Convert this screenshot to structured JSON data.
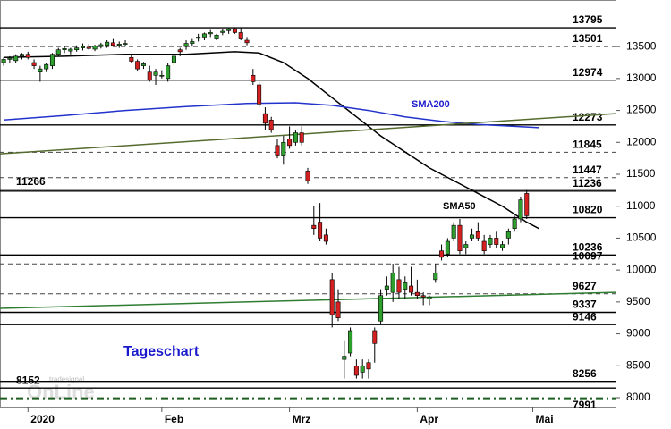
{
  "chart_data": {
    "type": "candlestick",
    "annotations": {
      "title": "Tageschart",
      "sma200": "SMA200",
      "sma50": "SMA50"
    },
    "watermark": [
      "tradesignal",
      "OnLine"
    ],
    "xlim": [
      -0.6,
      100.6
    ],
    "ylim": [
      7860,
      14230
    ],
    "yticks": [
      8000,
      8500,
      9000,
      9500,
      10000,
      10500,
      11000,
      11500,
      12000,
      12500,
      13000,
      13500
    ],
    "xticks": [
      {
        "value": 4,
        "label": "2020"
      },
      {
        "value": 26,
        "label": "Feb"
      },
      {
        "value": 47,
        "label": "Mrz"
      },
      {
        "value": 68,
        "label": "Apr"
      },
      {
        "value": 87,
        "label": "Mai"
      }
    ],
    "up_color": "#2e9e2e",
    "down_color": "#d42020",
    "candles": {
      "x": [
        0,
        1,
        2,
        3,
        4,
        5,
        6,
        7,
        8,
        9,
        10,
        11,
        12,
        13,
        14,
        15,
        16,
        17,
        18,
        19,
        20,
        21,
        22,
        23,
        24,
        25,
        26,
        27,
        28,
        29,
        30,
        31,
        32,
        33,
        34,
        35,
        36,
        37,
        38,
        39,
        40,
        41,
        42,
        43,
        44,
        45,
        46,
        47,
        48,
        49,
        50,
        51,
        52,
        53,
        54,
        55,
        56,
        57,
        58,
        59,
        60,
        61,
        62,
        63,
        64,
        65,
        66,
        67,
        68,
        69,
        70,
        71,
        72,
        73,
        74,
        75,
        76,
        77,
        78,
        79,
        80,
        81,
        82,
        83,
        84,
        85,
        86
      ],
      "open": [
        13250,
        13300,
        13280,
        13350,
        13380,
        13250,
        13100,
        13150,
        13200,
        13380,
        13450,
        13430,
        13450,
        13480,
        13490,
        13460,
        13500,
        13520,
        13560,
        13520,
        13540,
        13330,
        13270,
        13200,
        13100,
        13050,
        13050,
        13000,
        13250,
        13450,
        13500,
        13550,
        13630,
        13650,
        13700,
        13620,
        13720,
        13750,
        13780,
        13720,
        13600,
        13050,
        12900,
        12450,
        12350,
        11950,
        11800,
        12050,
        12000,
        12150,
        11550,
        10700,
        10750,
        10550,
        9850,
        9500,
        8600,
        8700,
        8500,
        8400,
        8550,
        9050,
        9200,
        9700,
        9650,
        9850,
        9700,
        9750,
        9650,
        9600,
        9550,
        9850,
        10300,
        10250,
        10500,
        10700,
        10350,
        10500,
        10600,
        10450,
        10400,
        10500,
        10350,
        10500,
        10650,
        10800,
        11200
      ],
      "high": [
        13330,
        13350,
        13380,
        13400,
        13420,
        13300,
        13200,
        13250,
        13400,
        13480,
        13500,
        13480,
        13520,
        13550,
        13540,
        13530,
        13560,
        13600,
        13620,
        13580,
        13600,
        13380,
        13300,
        13260,
        13200,
        13150,
        13130,
        13250,
        13380,
        13480,
        13600,
        13620,
        13700,
        13720,
        13760,
        13700,
        13780,
        13800,
        13800,
        13790,
        13650,
        13150,
        12950,
        12550,
        12400,
        12050,
        12100,
        12250,
        12200,
        12250,
        11600,
        11000,
        11050,
        10650,
        9950,
        9700,
        8900,
        9100,
        8600,
        8600,
        8600,
        9100,
        9700,
        9900,
        10100,
        10050,
        9900,
        10050,
        9850,
        9650,
        9600,
        10100,
        10400,
        10500,
        10750,
        10800,
        10450,
        10650,
        10750,
        10550,
        10550,
        10600,
        10450,
        10650,
        10850,
        11150,
        11250
      ],
      "low": [
        13200,
        13250,
        13250,
        13300,
        13300,
        13150,
        12950,
        13100,
        13150,
        13350,
        13400,
        13380,
        13420,
        13440,
        13450,
        13430,
        13470,
        13480,
        13500,
        13480,
        13500,
        13250,
        13120,
        13150,
        12950,
        12900,
        13000,
        12950,
        13200,
        13350,
        13450,
        13500,
        13580,
        13600,
        13650,
        13600,
        13680,
        13700,
        13700,
        13600,
        13520,
        12900,
        12550,
        12200,
        12150,
        11750,
        11650,
        11900,
        11950,
        11950,
        11350,
        10550,
        10450,
        10400,
        9100,
        9200,
        8300,
        8650,
        8300,
        8300,
        8300,
        8550,
        9150,
        9600,
        9500,
        9550,
        9550,
        9600,
        9550,
        9450,
        9450,
        9800,
        10150,
        10200,
        10450,
        10250,
        10250,
        10450,
        10450,
        10250,
        10350,
        10350,
        10300,
        10400,
        10600,
        10750,
        10800
      ],
      "close": [
        13300,
        13320,
        13350,
        13380,
        13330,
        13200,
        13150,
        13220,
        13380,
        13450,
        13470,
        13460,
        13480,
        13500,
        13470,
        13510,
        13530,
        13570,
        13520,
        13540,
        13550,
        13270,
        13150,
        13230,
        12980,
        13100,
        13050,
        13200,
        13350,
        13420,
        13550,
        13580,
        13650,
        13700,
        13720,
        13680,
        13740,
        13770,
        13720,
        13620,
        13560,
        12950,
        12600,
        12300,
        12200,
        11800,
        12000,
        11950,
        12150,
        12000,
        11400,
        10650,
        10500,
        10450,
        9300,
        9250,
        8650,
        9050,
        8350,
        8500,
        8450,
        8850,
        9600,
        9750,
        9950,
        9650,
        9800,
        9650,
        9600,
        9580,
        9580,
        9950,
        10200,
        10450,
        10700,
        10300,
        10400,
        10550,
        10500,
        10300,
        10500,
        10400,
        10400,
        10600,
        10800,
        11100,
        10850
      ]
    },
    "lines": [
      {
        "name": "SMA50",
        "color": "#000000",
        "x": [
          0,
          10,
          20,
          30,
          38,
          42,
          46,
          50,
          54,
          58,
          62,
          66,
          70,
          74,
          78,
          82,
          86,
          88
        ],
        "values": [
          13330,
          13350,
          13380,
          13380,
          13420,
          13400,
          13250,
          13000,
          12700,
          12400,
          12100,
          11850,
          11600,
          11400,
          11200,
          11000,
          10750,
          10650
        ]
      },
      {
        "name": "SMA200",
        "color": "#2233cc",
        "x": [
          0,
          10,
          20,
          30,
          40,
          48,
          54,
          60,
          66,
          72,
          78,
          84,
          88
        ],
        "values": [
          12350,
          12420,
          12500,
          12560,
          12610,
          12620,
          12580,
          12500,
          12400,
          12330,
          12280,
          12250,
          12230
        ]
      },
      {
        "color": "#556b2f",
        "x": [
          -0.6,
          100.6
        ],
        "values": [
          11820,
          12450
        ]
      },
      {
        "color": "#2e7d32",
        "x": [
          -0.6,
          100.6
        ],
        "values": [
          9400,
          9650
        ]
      }
    ],
    "levels": [
      {
        "value": 13795,
        "style": "solid",
        "side": "right"
      },
      {
        "value": 13501,
        "style": "dashed",
        "side": "right"
      },
      {
        "value": 12974,
        "style": "solid",
        "side": "right"
      },
      {
        "value": 12273,
        "style": "solid",
        "side": "right"
      },
      {
        "value": 11845,
        "style": "dashed",
        "side": "right"
      },
      {
        "value": 11447,
        "style": "dashed",
        "side": "right"
      },
      {
        "value": 11266,
        "style": "solid",
        "side": "left"
      },
      {
        "value": 11236,
        "style": "solid",
        "side": "right"
      },
      {
        "value": 10820,
        "style": "solid",
        "side": "right"
      },
      {
        "value": 10236,
        "style": "solid",
        "side": "right"
      },
      {
        "value": 10097,
        "style": "dashed",
        "side": "right"
      },
      {
        "value": 9627,
        "style": "dashed",
        "side": "right"
      },
      {
        "value": 9337,
        "style": "solid",
        "side": "right"
      },
      {
        "value": 9146,
        "style": "solid",
        "side": "right"
      },
      {
        "value": 8256,
        "style": "solid",
        "side": "right"
      },
      {
        "value": 8152,
        "style": "solid",
        "side": "left"
      },
      {
        "value": 7991,
        "style": "dashdot",
        "side": "right"
      }
    ]
  }
}
